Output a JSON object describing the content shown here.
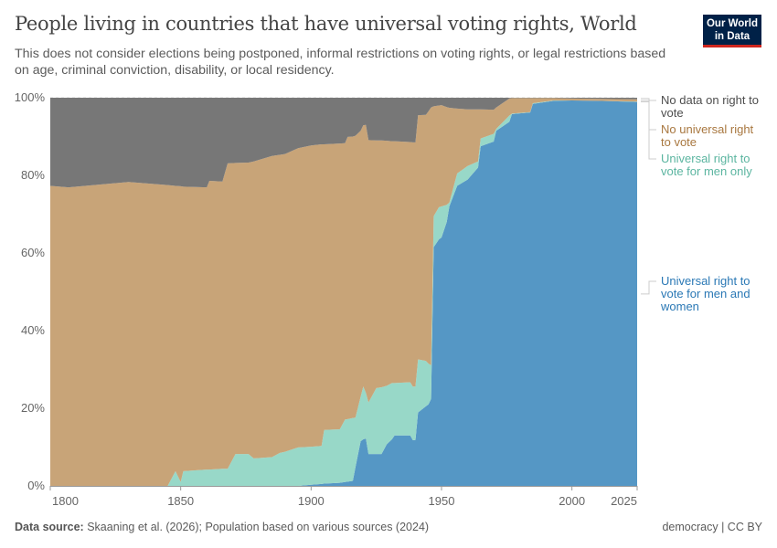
{
  "header": {
    "title": "People living in countries that have universal voting rights, World",
    "subtitle": "This does not consider elections being postponed, informal restrictions on voting rights, or legal restrictions based on age, criminal conviction, disability, or local residency.",
    "logo_text": "Our World in Data"
  },
  "footer": {
    "source_label": "Data source:",
    "source_text": "Skaaning et al. (2026); Population based on various sources (2024)",
    "license": "democracy | CC BY"
  },
  "chart_data": {
    "type": "area",
    "stacked": true,
    "title": "",
    "xlabel": "",
    "ylabel": "",
    "xlim": [
      1800,
      2025
    ],
    "ylim": [
      0,
      100
    ],
    "grid": "horizontal dashed",
    "legend": "right, inline labels",
    "x_ticks": [
      "1800",
      "1850",
      "1900",
      "1950",
      "2000",
      "2025"
    ],
    "y_ticks": [
      "0%",
      "20%",
      "40%",
      "60%",
      "80%",
      "100%"
    ],
    "x": [
      1800,
      1807,
      1830,
      1845,
      1848,
      1850,
      1851,
      1860,
      1861,
      1866,
      1868,
      1871,
      1876,
      1878,
      1885,
      1888,
      1890,
      1895,
      1900,
      1904,
      1905,
      1911,
      1913,
      1914,
      1916,
      1917,
      1919,
      1920,
      1921,
      1922,
      1925,
      1927,
      1929,
      1931,
      1932,
      1938,
      1939,
      1940,
      1941,
      1944,
      1945,
      1946,
      1947,
      1949,
      1950,
      1952,
      1953,
      1956,
      1960,
      1964,
      1965,
      1970,
      1971,
      1976,
      1977,
      1984,
      1985,
      1993,
      2000,
      2010,
      2025
    ],
    "series": [
      {
        "name": "Universal right to vote for men and women",
        "color": "#5597c5",
        "label_color": "#2a78b5",
        "values": [
          0,
          0,
          0,
          0,
          0,
          0,
          0,
          0,
          0,
          0,
          0,
          0,
          0,
          0,
          0,
          0,
          0,
          0,
          0.3,
          0.5,
          0.6,
          0.8,
          1.0,
          1.1,
          1.3,
          4.8,
          11.5,
          12.0,
          12.2,
          8.2,
          8.2,
          8.2,
          10.7,
          12.0,
          13.0,
          13.0,
          11.8,
          11.8,
          18.9,
          20.5,
          21.0,
          22.4,
          61.5,
          63.5,
          64.0,
          68.0,
          72.0,
          77.3,
          78.9,
          82.0,
          87.5,
          88.7,
          91.5,
          93.8,
          95.8,
          96.2,
          98.4,
          99.2,
          99.3,
          99.2,
          98.9
        ]
      },
      {
        "name": "Universal right to vote for men only",
        "color": "#98d8c8",
        "label_color": "#5bb5a0",
        "values": [
          0,
          0,
          0,
          0,
          3.8,
          1.0,
          3.8,
          4.2,
          4.2,
          4.4,
          4.4,
          8.2,
          8.2,
          7.1,
          7.4,
          8.5,
          8.8,
          9.9,
          9.8,
          9.8,
          13.8,
          13.8,
          16.1,
          16.1,
          16.2,
          12.8,
          11.5,
          13.6,
          11.8,
          13.3,
          17.0,
          17.2,
          15.1,
          14.5,
          13.5,
          13.7,
          13.8,
          13.8,
          13.7,
          11.7,
          10.5,
          8.7,
          8.0,
          8.3,
          8.0,
          4.4,
          1.0,
          3.2,
          3.5,
          1.6,
          2.0,
          2.0,
          0.5,
          1.6,
          0.1,
          0.1,
          0.2,
          0.1,
          0,
          0,
          0.1
        ]
      },
      {
        "name": "No universal right to vote",
        "color": "#c8a478",
        "label_color": "#a8773f",
        "values": [
          77.3,
          76.9,
          78.3,
          77.5,
          73.5,
          76.2,
          73.3,
          72.7,
          74.4,
          74.0,
          78.7,
          75.0,
          75.1,
          76.5,
          77.6,
          76.8,
          76.7,
          77.1,
          77.6,
          77.7,
          73.6,
          73.6,
          71.2,
          72.7,
          72.5,
          72.6,
          68.5,
          67.3,
          69.0,
          67.6,
          63.8,
          63.6,
          63.1,
          62.3,
          62.3,
          61.9,
          62.9,
          62.9,
          62.9,
          63.4,
          65.0,
          66.4,
          28.3,
          26.2,
          26.1,
          25.2,
          24.4,
          16.7,
          14.6,
          13.4,
          7.5,
          6.2,
          5.5,
          4.4,
          4.0,
          3.6,
          1.3,
          0.6,
          0.5,
          0.5,
          0.6
        ]
      },
      {
        "name": "No data on right to vote",
        "color": "#777777",
        "label_color": "#4d4d4d",
        "values": [
          22.7,
          23.1,
          21.7,
          22.5,
          22.7,
          22.8,
          22.9,
          23.1,
          21.4,
          21.6,
          16.9,
          16.8,
          16.7,
          16.4,
          15.0,
          14.7,
          14.5,
          13.0,
          12.3,
          12.0,
          12.0,
          11.8,
          11.7,
          10.1,
          10.0,
          9.8,
          8.5,
          7.1,
          7.0,
          10.9,
          11.0,
          11.0,
          11.1,
          11.2,
          11.2,
          11.4,
          11.5,
          11.5,
          4.5,
          4.4,
          3.5,
          2.5,
          2.2,
          2.0,
          1.9,
          2.4,
          2.6,
          2.8,
          3.0,
          3.0,
          3.0,
          3.1,
          2.5,
          0.2,
          0.1,
          0.1,
          0.1,
          0.1,
          0.2,
          0.3,
          0.4
        ]
      }
    ]
  }
}
